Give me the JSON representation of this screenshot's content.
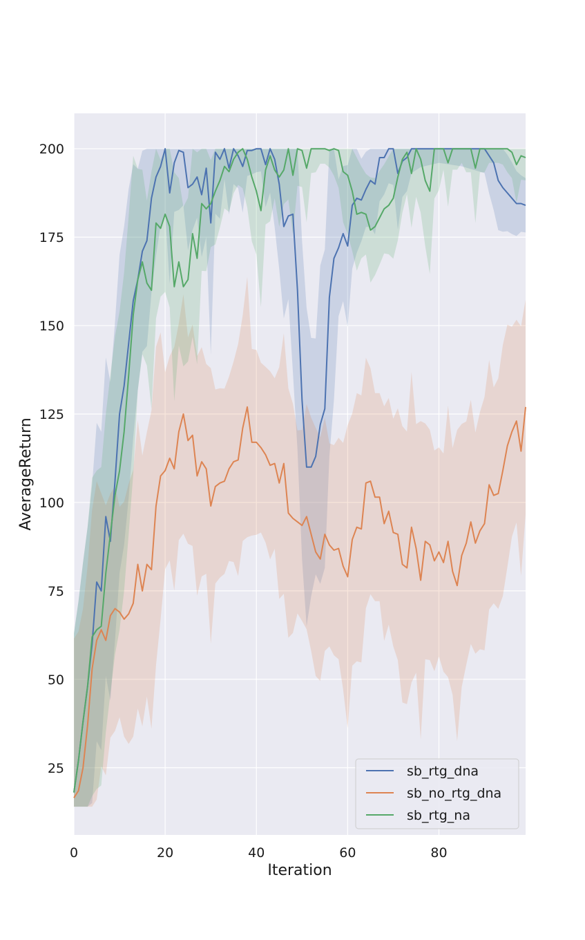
{
  "chart_data": {
    "type": "line",
    "title": "",
    "xlabel": "Iteration",
    "ylabel": "AverageReturn",
    "xlim": [
      0,
      99
    ],
    "ylim": [
      6,
      210
    ],
    "xticks": [
      0,
      20,
      40,
      60,
      80
    ],
    "yticks": [
      25,
      50,
      75,
      100,
      125,
      150,
      175,
      200
    ],
    "grid": true,
    "legend_position": "bottom-right",
    "colors": {
      "background": "#eaeaf2",
      "grid": "#ffffff"
    },
    "series": [
      {
        "name": "sb_rtg_dna",
        "color": "#4c72b0",
        "x_pts": [
          0,
          1,
          2,
          3,
          4,
          5,
          6,
          7,
          8,
          9,
          10,
          11,
          12,
          13,
          14,
          15,
          16,
          17,
          18,
          19,
          20,
          21,
          22,
          23,
          24,
          25,
          26,
          27,
          28,
          29,
          30,
          31,
          32,
          33,
          34,
          35,
          36,
          37,
          38,
          39,
          40,
          41,
          42,
          43,
          44,
          45,
          46,
          47,
          48,
          49,
          50,
          51,
          52,
          53,
          54,
          55,
          56,
          57,
          58,
          59,
          60,
          61,
          62,
          63,
          64,
          65,
          66,
          67,
          68,
          69,
          70,
          71,
          72,
          73,
          74,
          76,
          80,
          85,
          90,
          91,
          92,
          93,
          94,
          95,
          96,
          97,
          98,
          99
        ],
        "y_pts": [
          18,
          27,
          38,
          48,
          60,
          77.5,
          75,
          96,
          89,
          106,
          125,
          133,
          145,
          157,
          163,
          171,
          174,
          186,
          192,
          195,
          200,
          187.5,
          196,
          199.5,
          199,
          189,
          190,
          192,
          187,
          194.5,
          179,
          199,
          197,
          200,
          194.5,
          200,
          198,
          195,
          199.5,
          199.5,
          200,
          200,
          195.5,
          200,
          197,
          190,
          178,
          181,
          181.5,
          160,
          129,
          110,
          110,
          113,
          122,
          126.5,
          158,
          169,
          172,
          176,
          172.5,
          184,
          186,
          185.5,
          188.5,
          191,
          190,
          197.5,
          197.5,
          200,
          200,
          193,
          196.5,
          197.5,
          200,
          200,
          200,
          200,
          200,
          198,
          196,
          191,
          189,
          187.5,
          186,
          184.5,
          184.5,
          184
        ]
      },
      {
        "name": "sb_no_rtg_dna",
        "color": "#dd8452",
        "x_pts": [
          0,
          1,
          2,
          3,
          4,
          5,
          6,
          7,
          8,
          9,
          10,
          11,
          12,
          13,
          14,
          15,
          16,
          17,
          18,
          19,
          20,
          21,
          22,
          23,
          24,
          25,
          26,
          27,
          28,
          29,
          30,
          31,
          32,
          33,
          34,
          35,
          36,
          37,
          38,
          39,
          40,
          41,
          42,
          43,
          44,
          45,
          46,
          47,
          48,
          49,
          50,
          51,
          52,
          53,
          54,
          55,
          56,
          57,
          58,
          59,
          60,
          61,
          62,
          63,
          64,
          65,
          66,
          67,
          68,
          69,
          70,
          71,
          72,
          73,
          74,
          75,
          76,
          77,
          78,
          79,
          80,
          81,
          82,
          83,
          84,
          85,
          86,
          87,
          88,
          89,
          90,
          91,
          92,
          93,
          94,
          95,
          96,
          97,
          98,
          99
        ],
        "y_pts": [
          16.5,
          18.5,
          25,
          37,
          53,
          61,
          64,
          61,
          68,
          70,
          69,
          67,
          68.5,
          71.5,
          82.5,
          75,
          82.5,
          81,
          99,
          107.5,
          109,
          112.5,
          109.5,
          120,
          125,
          117.5,
          119,
          107.5,
          111.5,
          109.5,
          99,
          104.5,
          105.5,
          106,
          109.5,
          111.5,
          112,
          121,
          127,
          117,
          117,
          115.5,
          113.5,
          110.5,
          111,
          105.5,
          111,
          97,
          95.5,
          94.5,
          93.5,
          96,
          91,
          86,
          84,
          91,
          88,
          86.5,
          87,
          82,
          79,
          89.5,
          93,
          92.5,
          105.5,
          106,
          101.5,
          101.5,
          94,
          97.5,
          91.5,
          91,
          82.5,
          81.5,
          93,
          87,
          78,
          89,
          88,
          83.5,
          86,
          83,
          89,
          80.5,
          76.5,
          85,
          88.5,
          94.5,
          88.5,
          92,
          94,
          105,
          102,
          102.5,
          109,
          116,
          120,
          123,
          114.5,
          127
        ]
      },
      {
        "name": "sb_rtg_na",
        "color": "#55a868",
        "x_pts": [
          0,
          1,
          2,
          3,
          4,
          5,
          6,
          7,
          8,
          9,
          10,
          11,
          12,
          13,
          14,
          15,
          16,
          17,
          18,
          19,
          20,
          21,
          22,
          23,
          24,
          25,
          26,
          27,
          28,
          29,
          30,
          31,
          32,
          33,
          34,
          35,
          36,
          37,
          38,
          39,
          40,
          41,
          42,
          43,
          44,
          45,
          46,
          47,
          48,
          49,
          50,
          51,
          52,
          53,
          54,
          55,
          56,
          57,
          58,
          59,
          60,
          61,
          62,
          63,
          64,
          65,
          66,
          67,
          68,
          69,
          70,
          71,
          72,
          73,
          74,
          75,
          76,
          77,
          78,
          79,
          80,
          81,
          82,
          83,
          84,
          85,
          86,
          87,
          88,
          89,
          90,
          91,
          92,
          93,
          94,
          95,
          96,
          97,
          98,
          99
        ],
        "y_pts": [
          18,
          27,
          38,
          48,
          62,
          64,
          65,
          80,
          91,
          102,
          109,
          120,
          136,
          153,
          163,
          168,
          162,
          160,
          179,
          177.5,
          181.5,
          178,
          161,
          168,
          161,
          163,
          176,
          169,
          184.5,
          183,
          184.5,
          188,
          191,
          195,
          193.5,
          197,
          199,
          200,
          197,
          192,
          188,
          182.5,
          194,
          198,
          194,
          192,
          194,
          200,
          192.5,
          200,
          199.5,
          194.5,
          200,
          200,
          200,
          200,
          199.5,
          200,
          199.5,
          193.5,
          192.5,
          188,
          181.5,
          182,
          181.5,
          177,
          178,
          180.5,
          183,
          184,
          186,
          192,
          197,
          199,
          193,
          200,
          197,
          191,
          188,
          200,
          200,
          200,
          196,
          200,
          200,
          200,
          200,
          200,
          194.5,
          200,
          200,
          200,
          200,
          200,
          200,
          200,
          199,
          195.5,
          198,
          197.5
        ]
      }
    ]
  }
}
